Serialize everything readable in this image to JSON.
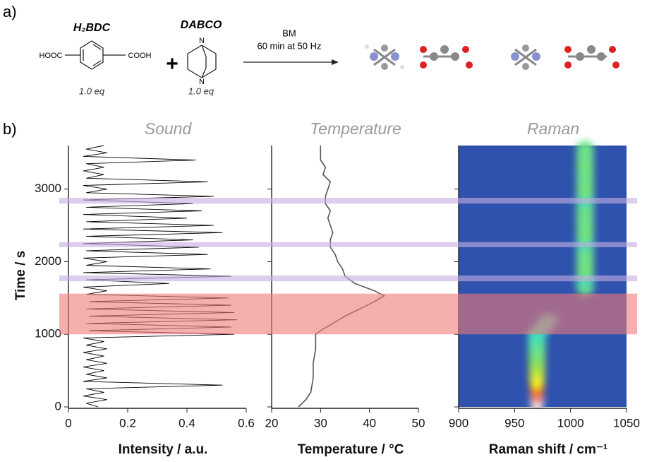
{
  "scheme": {
    "label": "a)",
    "reactant1": {
      "name": "H₂BDC",
      "left_group": "HOOC",
      "right_group": "COOH",
      "amount": "1.0 eq"
    },
    "plus": "+",
    "reactant2": {
      "name": "DABCO",
      "atom_top": "N",
      "atom_bottom": "N",
      "amount": "1.0 eq"
    },
    "condition1": "BM",
    "condition2": "60 min at 50 Hz"
  },
  "panel_label": "b)",
  "bands": [
    {
      "start": 1000,
      "end": 1560,
      "color": "#f07a7a"
    },
    {
      "start": 1730,
      "end": 1810,
      "color": "#c4aee0"
    },
    {
      "start": 2200,
      "end": 2270,
      "color": "#c4aee0"
    },
    {
      "start": 2800,
      "end": 2880,
      "color": "#c4aee0"
    }
  ],
  "chart_data": [
    {
      "type": "line",
      "title": "Sound",
      "xlabel": "Intensity / a.u.",
      "ylabel": "Time / s",
      "color": "#000000",
      "xlim": [
        0,
        0.6
      ],
      "xticks": [
        0.0,
        0.2,
        0.4,
        0.6
      ],
      "ylim": [
        0,
        3600
      ],
      "yticks": [
        0,
        1000,
        2000,
        3000
      ],
      "y": [
        0,
        50,
        100,
        150,
        200,
        250,
        300,
        350,
        400,
        450,
        500,
        550,
        600,
        650,
        700,
        750,
        800,
        850,
        900,
        950,
        1000,
        1050,
        1100,
        1150,
        1200,
        1250,
        1300,
        1350,
        1400,
        1450,
        1500,
        1550,
        1600,
        1650,
        1700,
        1750,
        1800,
        1850,
        1900,
        1950,
        2000,
        2050,
        2100,
        2150,
        2200,
        2250,
        2300,
        2350,
        2400,
        2450,
        2500,
        2550,
        2600,
        2650,
        2700,
        2750,
        2800,
        2850,
        2900,
        2950,
        3000,
        3050,
        3100,
        3150,
        3200,
        3250,
        3300,
        3350,
        3400,
        3450,
        3500,
        3550,
        3600
      ],
      "values": [
        0.1,
        0.06,
        0.13,
        0.05,
        0.12,
        0.06,
        0.52,
        0.05,
        0.13,
        0.06,
        0.12,
        0.05,
        0.13,
        0.06,
        0.12,
        0.05,
        0.13,
        0.06,
        0.12,
        0.05,
        0.56,
        0.07,
        0.55,
        0.06,
        0.57,
        0.07,
        0.56,
        0.06,
        0.55,
        0.07,
        0.54,
        0.06,
        0.13,
        0.05,
        0.34,
        0.06,
        0.55,
        0.05,
        0.48,
        0.06,
        0.13,
        0.05,
        0.47,
        0.06,
        0.44,
        0.05,
        0.42,
        0.06,
        0.52,
        0.05,
        0.49,
        0.06,
        0.4,
        0.05,
        0.45,
        0.06,
        0.42,
        0.05,
        0.49,
        0.06,
        0.13,
        0.05,
        0.47,
        0.06,
        0.12,
        0.05,
        0.12,
        0.06,
        0.43,
        0.05,
        0.13,
        0.06,
        0.12
      ]
    },
    {
      "type": "line",
      "title": "Temperature",
      "xlabel": "Temperature / °C",
      "color": "#555555",
      "xlim": [
        20,
        50
      ],
      "xticks": [
        20,
        30,
        40,
        50
      ],
      "ylim": [
        0,
        3600
      ],
      "yticks": [
        0,
        1000,
        2000,
        3000
      ],
      "y": [
        0,
        100,
        200,
        400,
        600,
        800,
        1000,
        1050,
        1150,
        1250,
        1350,
        1450,
        1530,
        1600,
        1700,
        1800,
        1900,
        2000,
        2100,
        2200,
        2300,
        2400,
        2500,
        2600,
        2700,
        2800,
        2900,
        3000,
        3100,
        3200,
        3300,
        3400,
        3500,
        3600
      ],
      "values": [
        25.5,
        27,
        28,
        28.5,
        28.5,
        29,
        29,
        30,
        32.5,
        35,
        38,
        41,
        43,
        41,
        37,
        35,
        34.5,
        33.5,
        33,
        32,
        32,
        32.5,
        32,
        31.5,
        32,
        31,
        31,
        31.5,
        32,
        30.5,
        31,
        30,
        30,
        30
      ]
    },
    {
      "type": "heatmap",
      "title": "Raman",
      "xlabel": "Raman shift / cm⁻¹",
      "background": "#2e52ae",
      "xlim": [
        900,
        1050
      ],
      "xticks": [
        900,
        950,
        1000,
        1050
      ],
      "ylim": [
        0,
        3600
      ],
      "yticks": [
        0,
        1000,
        2000,
        3000
      ],
      "x": [
        970,
        970,
        970,
        970,
        970,
        970,
        970,
        970,
        970,
        970,
        976,
        980,
        1013,
        1013,
        1013,
        1013,
        1013,
        1013,
        1013,
        1013,
        1013,
        1013,
        1013,
        1013,
        1013,
        1013,
        1013,
        1013,
        1013,
        1013,
        1013,
        1013
      ],
      "y": [
        100,
        200,
        300,
        400,
        500,
        600,
        700,
        800,
        900,
        1000,
        1100,
        1200,
        1650,
        1750,
        1850,
        1950,
        2050,
        2150,
        2250,
        2350,
        2450,
        2550,
        2650,
        2750,
        2850,
        2950,
        3050,
        3150,
        3250,
        3350,
        3450,
        3550
      ],
      "values": [
        1.0,
        0.9,
        0.8,
        0.7,
        0.6,
        0.5,
        0.45,
        0.4,
        0.35,
        0.3,
        0.25,
        0.2,
        0.4,
        0.25,
        0.4,
        0.42,
        0.4,
        0.4,
        0.25,
        0.4,
        0.42,
        0.4,
        0.4,
        0.4,
        0.25,
        0.4,
        0.42,
        0.4,
        0.4,
        0.42,
        0.4,
        0.4
      ]
    }
  ]
}
